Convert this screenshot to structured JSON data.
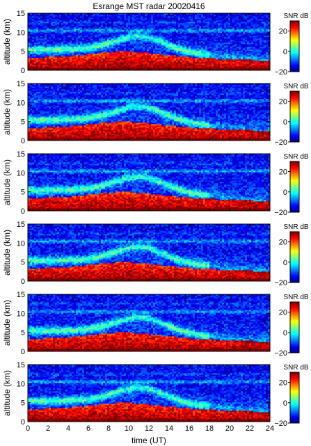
{
  "chart_data": {
    "type": "heatmap",
    "title": "Esrange MST radar 20020416",
    "xlabel": "time (UT)",
    "ylabel": "altitude (km)",
    "xlim": [
      0,
      24
    ],
    "ylim": [
      0,
      15
    ],
    "x_ticks": [
      "0",
      "2",
      "4",
      "6",
      "8",
      "10",
      "12",
      "14",
      "16",
      "18",
      "20",
      "22",
      "24"
    ],
    "y_ticks": [
      "0",
      "5",
      "10",
      "15"
    ],
    "colorbar": {
      "label": "SNR dB",
      "range": [
        -20,
        30
      ],
      "ticks": [
        "20",
        "0",
        "−20"
      ],
      "colormap": [
        "#00008f",
        "#0000ff",
        "#0080ff",
        "#00ffff",
        "#80ff80",
        "#ffff00",
        "#ff8000",
        "#ff0000",
        "#800000"
      ]
    },
    "panels": 6,
    "description_values": {
      "surface_layer_snr_db": 30,
      "mid_troposphere_snr_db": 10,
      "upper_noise_snr_db": -15
    }
  }
}
